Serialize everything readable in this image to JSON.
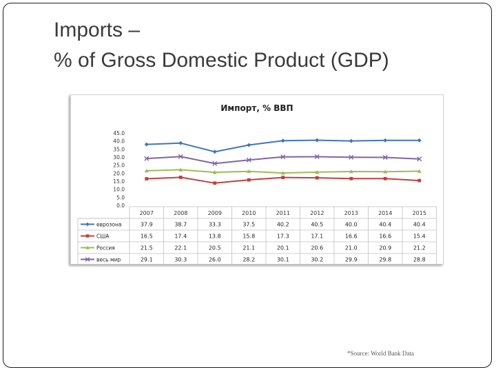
{
  "slide": {
    "title_line1": "Imports –",
    "title_line2": "% of Gross Domestic Product (GDP)",
    "source": "*Source: World Bank Data"
  },
  "chart_data": {
    "type": "line",
    "title": "Импорт, % ВВП",
    "categories": [
      "2007",
      "2008",
      "2009",
      "2010",
      "2011",
      "2012",
      "2013",
      "2014",
      "2015"
    ],
    "ylim": [
      0,
      45
    ],
    "yticks": [
      "0.0",
      "5.0",
      "10.0",
      "15.0",
      "20.0",
      "25.0",
      "30.0",
      "35.0",
      "40.0",
      "45.0"
    ],
    "series": [
      {
        "name": "еврозона",
        "color": "#3f74bd",
        "marker": "diamond",
        "values": [
          37.9,
          38.7,
          33.3,
          37.5,
          40.2,
          40.5,
          40.0,
          40.4,
          40.4
        ],
        "labels": [
          "37.9",
          "38.7",
          "33.3",
          "37.5",
          "40.2",
          "40.5",
          "40.0",
          "40.4",
          "40.4"
        ]
      },
      {
        "name": "США",
        "color": "#c0403c",
        "marker": "square",
        "values": [
          16.5,
          17.4,
          13.8,
          15.8,
          17.3,
          17.1,
          16.6,
          16.6,
          15.4
        ],
        "labels": [
          "16.5",
          "17.4",
          "13.8",
          "15.8",
          "17.3",
          "17.1",
          "16.6",
          "16.6",
          "15.4"
        ]
      },
      {
        "name": "Россия",
        "color": "#9bbb59",
        "marker": "triangle",
        "values": [
          21.5,
          22.1,
          20.5,
          21.1,
          20.1,
          20.6,
          21.0,
          20.9,
          21.2
        ],
        "labels": [
          "21.5",
          "22.1",
          "20.5",
          "21.1",
          "20.1",
          "20.6",
          "21.0",
          "20.9",
          "21.2"
        ]
      },
      {
        "name": "весь мир",
        "color": "#8064a2",
        "marker": "x",
        "values": [
          29.1,
          30.3,
          26.0,
          28.2,
          30.1,
          30.2,
          29.9,
          29.8,
          28.8
        ],
        "labels": [
          "29.1",
          "30.3",
          "26.0",
          "28.2",
          "30.1",
          "30.2",
          "29.9",
          "29.8",
          "28.8"
        ]
      }
    ],
    "grid": false,
    "legend": "data-table"
  }
}
